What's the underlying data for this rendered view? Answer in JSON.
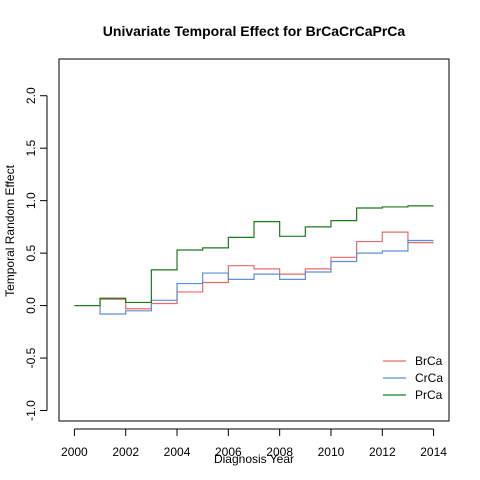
{
  "chart_data": {
    "type": "line",
    "step": true,
    "title": "Univariate Temporal Effect for BrCaCrCaPrCa",
    "xlabel": "Diagnosis Year",
    "ylabel": "Temporal Random Effect",
    "xlim": [
      1999.4,
      2014.6
    ],
    "ylim": [
      -1.1,
      2.35
    ],
    "xticks": [
      2000,
      2002,
      2004,
      2006,
      2008,
      2010,
      2012,
      2014
    ],
    "yticks": [
      -1.0,
      -0.5,
      0.0,
      0.5,
      1.0,
      1.5,
      2.0
    ],
    "ytick_labels": [
      "-1.0",
      "-0.5",
      "0.0",
      "0.5",
      "1.0",
      "1.5",
      "2.0"
    ],
    "x": [
      2000,
      2001,
      2002,
      2003,
      2004,
      2005,
      2006,
      2007,
      2008,
      2009,
      2010,
      2011,
      2012,
      2013,
      2014
    ],
    "series": [
      {
        "name": "BrCa",
        "color": "#e8696b",
        "values": [
          0.0,
          0.06,
          -0.03,
          0.02,
          0.13,
          0.22,
          0.38,
          0.35,
          0.3,
          0.35,
          0.46,
          0.61,
          0.7,
          0.6,
          0.6
        ]
      },
      {
        "name": "CrCa",
        "color": "#5b8fd6",
        "values": [
          0.0,
          -0.08,
          -0.05,
          0.05,
          0.21,
          0.31,
          0.25,
          0.3,
          0.25,
          0.32,
          0.42,
          0.5,
          0.52,
          0.62,
          0.62
        ]
      },
      {
        "name": "PrCa",
        "color": "#1d7a1d",
        "values": [
          0.0,
          0.07,
          0.03,
          0.34,
          0.53,
          0.55,
          0.65,
          0.8,
          0.66,
          0.75,
          0.81,
          0.93,
          0.94,
          0.95,
          0.95
        ]
      }
    ],
    "legend_position": "bottom-right",
    "grid": false
  }
}
